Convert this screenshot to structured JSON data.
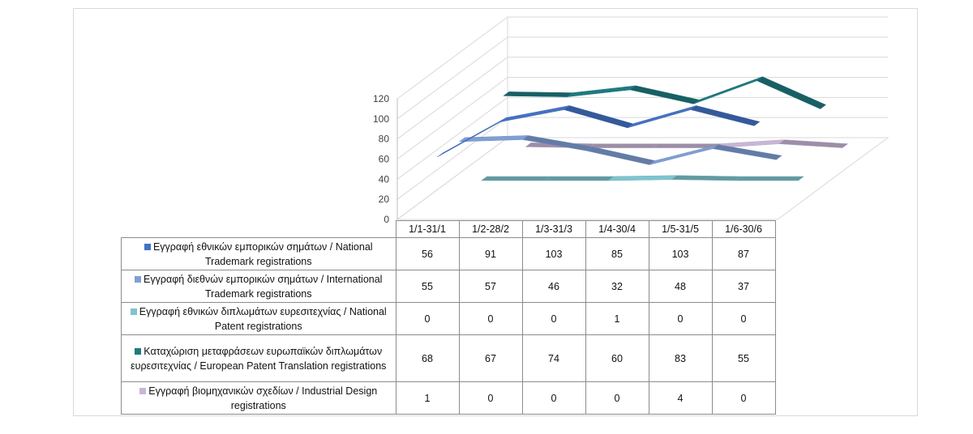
{
  "chart_data": {
    "type": "line",
    "title": "",
    "xlabel": "",
    "ylabel": "",
    "ylim": [
      0,
      120
    ],
    "yticks": [
      0,
      20,
      40,
      60,
      80,
      100,
      120
    ],
    "grid": true,
    "legend": "table-left",
    "categories": [
      "1/1-31/1",
      "1/2-28/2",
      "1/3-31/3",
      "1/4-30/4",
      "1/5-31/5",
      "1/6-30/6"
    ],
    "series": [
      {
        "name": "Εγγραφή εθνικών εμπορικών σημάτων / National Trademark registrations",
        "color": "#4472c4",
        "values": [
          56,
          91,
          103,
          85,
          103,
          87
        ]
      },
      {
        "name": "Εγγραφή διεθνών εμπορικών σημάτων / International Trademark registrations",
        "color": "#7f9fd3",
        "values": [
          55,
          57,
          46,
          32,
          48,
          37
        ]
      },
      {
        "name": "Εγγραφή εθνικών διπλωμάτων ευρεσιτεχνίας / National Patent registrations",
        "color": "#7fc4cf",
        "values": [
          0,
          0,
          0,
          1,
          0,
          0
        ]
      },
      {
        "name": "Καταχώριση μεταφράσεων ευρωπαϊκών διπλωμάτων ευρεσιτεχνίας / European Patent Translation registrations",
        "color": "#1f7a80",
        "values": [
          68,
          67,
          74,
          60,
          83,
          55
        ]
      },
      {
        "name": "Εγγραφή βιομηχανικών σχεδίων / Industrial Design registrations",
        "color": "#c8b6d6",
        "values": [
          1,
          0,
          0,
          0,
          4,
          0
        ]
      }
    ]
  }
}
